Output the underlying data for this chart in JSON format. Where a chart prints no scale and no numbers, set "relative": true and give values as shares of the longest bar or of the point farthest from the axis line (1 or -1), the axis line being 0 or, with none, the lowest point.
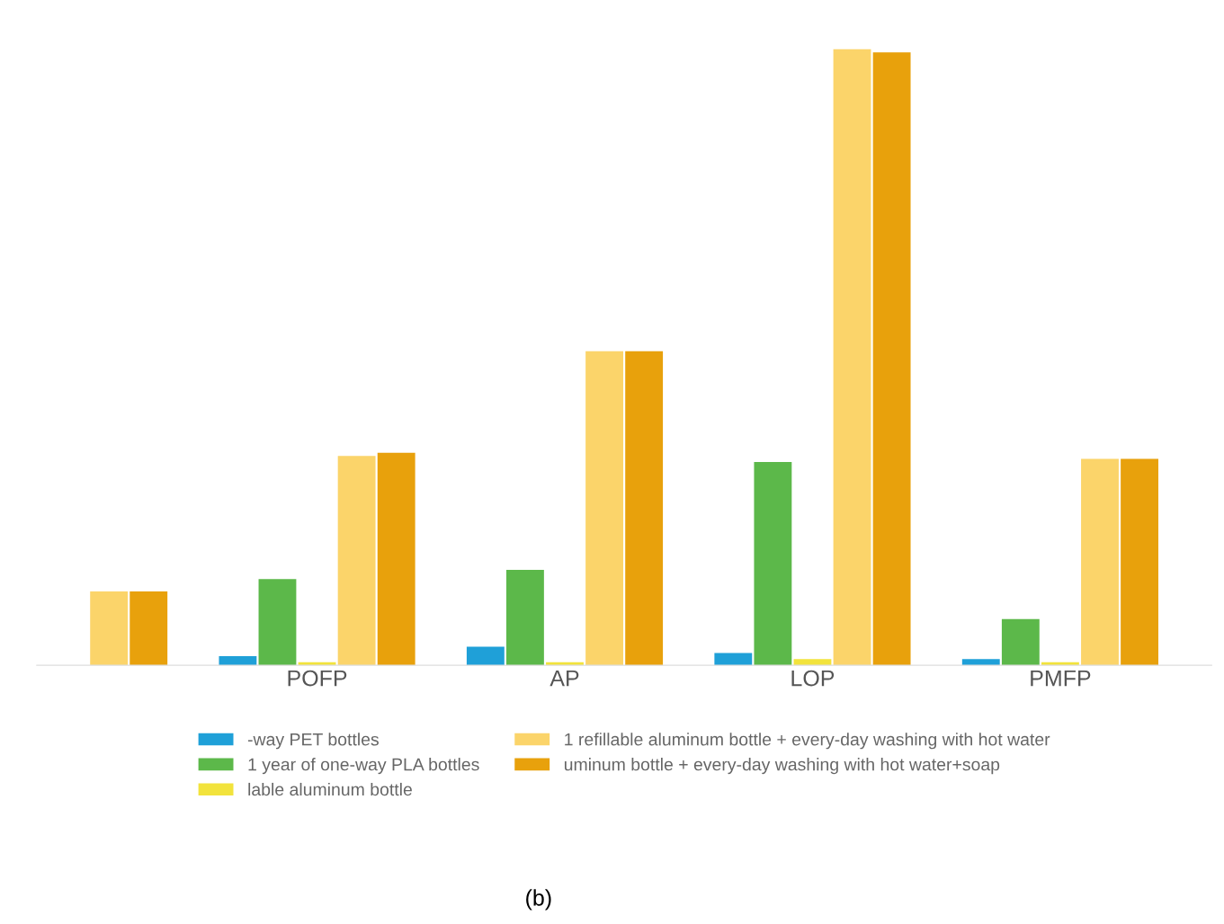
{
  "chart_data": {
    "type": "bar",
    "relative": true,
    "categories": [
      null,
      "POFP",
      "AP",
      "LOP",
      "PMFP"
    ],
    "series": [
      {
        "name": "-way PET bottles",
        "color": "#1fa0d8",
        "values": [
          null,
          0.015,
          0.03,
          0.02,
          0.01
        ]
      },
      {
        "name": "1 year of one-way PLA bottles",
        "color": "#5cb84a",
        "values": [
          null,
          0.14,
          0.155,
          0.33,
          0.075
        ]
      },
      {
        "name": "lable aluminum bottle",
        "color": "#f2e33c",
        "values": [
          null,
          0.005,
          0.005,
          0.01,
          0.005
        ]
      },
      {
        "name": "1 refillable aluminum bottle + every-day washing with hot water",
        "color": "#fbd46a",
        "values": [
          0.12,
          0.34,
          0.51,
          1,
          0.335
        ]
      },
      {
        "name": "uminum bottle + every-day washing with hot water+soap",
        "color": "#e8a10c",
        "values": [
          0.12,
          0.345,
          0.51,
          0.995,
          0.335
        ]
      }
    ],
    "legend": "bottom",
    "annotations": [
      "(b)"
    ]
  }
}
